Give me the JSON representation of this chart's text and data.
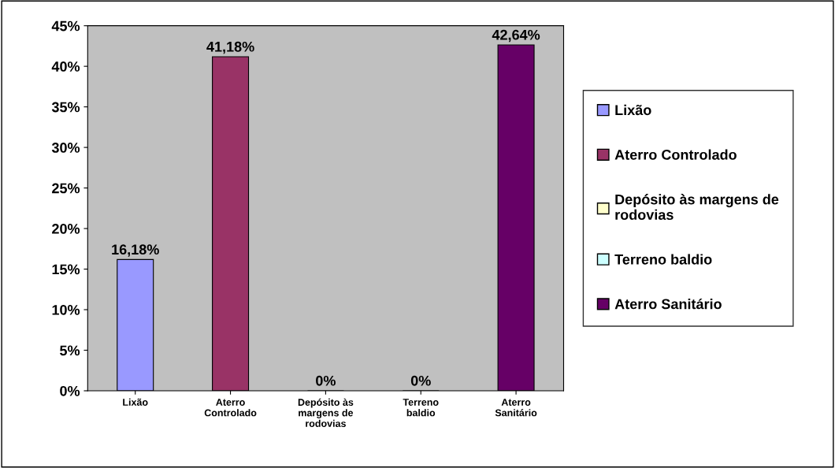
{
  "chart_data": {
    "type": "bar",
    "categories": [
      "Lixão",
      "Aterro Controlado",
      "Depósito às margens de rodovias",
      "Terreno baldio",
      "Aterro Sanitário"
    ],
    "series": [
      {
        "name": "Lixão",
        "color": "#9999ff",
        "values": [
          16.18,
          null,
          null,
          null,
          null
        ],
        "value_labels": [
          "16,18%",
          null,
          null,
          null,
          null
        ]
      },
      {
        "name": "Aterro Controlado",
        "color": "#993366",
        "values": [
          null,
          41.18,
          null,
          null,
          null
        ],
        "value_labels": [
          null,
          "41,18%",
          null,
          null,
          null
        ]
      },
      {
        "name": "Depósito às margens de rodovias",
        "color": "#ffffcc",
        "values": [
          null,
          null,
          0,
          null,
          null
        ],
        "value_labels": [
          null,
          null,
          "0%",
          null,
          null
        ]
      },
      {
        "name": "Terreno baldio",
        "color": "#ccffff",
        "values": [
          null,
          null,
          null,
          0,
          null
        ],
        "value_labels": [
          null,
          null,
          null,
          "0%",
          null
        ]
      },
      {
        "name": "Aterro Sanitário",
        "color": "#660066",
        "values": [
          null,
          null,
          null,
          null,
          42.64
        ],
        "value_labels": [
          null,
          null,
          null,
          null,
          "42,64%"
        ]
      }
    ],
    "ylim": [
      0,
      45
    ],
    "yticks": [
      {
        "value": 0,
        "label": "0%"
      },
      {
        "value": 5,
        "label": "5%"
      },
      {
        "value": 10,
        "label": "10%"
      },
      {
        "value": 15,
        "label": "15%"
      },
      {
        "value": 20,
        "label": "20%"
      },
      {
        "value": 25,
        "label": "25%"
      },
      {
        "value": 30,
        "label": "30%"
      },
      {
        "value": 35,
        "label": "35%"
      },
      {
        "value": 40,
        "label": "40%"
      },
      {
        "value": 45,
        "label": "45%"
      }
    ],
    "grid": false,
    "legend": "right"
  }
}
